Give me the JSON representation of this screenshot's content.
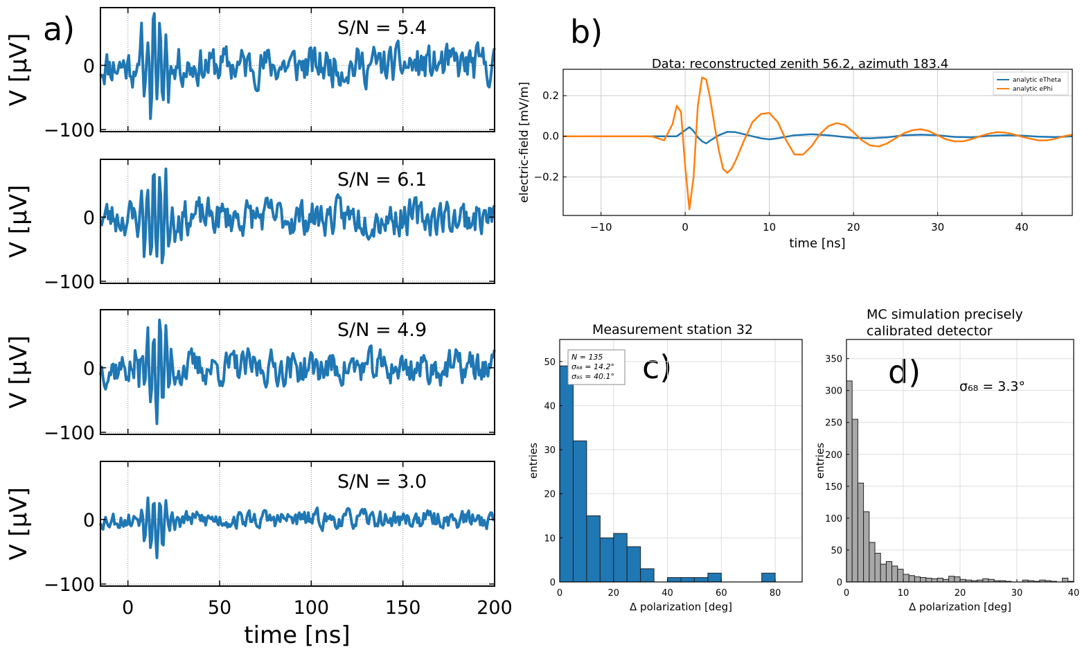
{
  "panel_labels": {
    "a": "a)",
    "b": "b)",
    "c": "c)",
    "d": "d)"
  },
  "colors": {
    "blue": "#1f77b4",
    "orange": "#ff7f0e",
    "gray_bar": "#a8a8a8",
    "grid": "#cccccc"
  },
  "chart_data": [
    {
      "id": "a",
      "type": "line",
      "xlabel": "time [ns]",
      "ylabel": "V [$\\mu$V]",
      "xlim": [
        -15,
        200
      ],
      "ylim": [
        -100,
        90
      ],
      "xticks": [
        0,
        50,
        100,
        150,
        200
      ],
      "yticks": [
        -100,
        0
      ],
      "ytick_labels": [
        "−100",
        "0"
      ],
      "grid": "vertical dotted",
      "panels": [
        {
          "annotation": "S/N = 5.4",
          "amplitude": 85,
          "pulse_amp": 1.9,
          "seed": 11
        },
        {
          "annotation": "S/N = 6.1",
          "amplitude": 80,
          "pulse_amp": 2.1,
          "seed": 23
        },
        {
          "annotation": "S/N = 4.9",
          "amplitude": 75,
          "pulse_amp": 1.9,
          "seed": 37
        },
        {
          "annotation": "S/N = 3.0",
          "amplitude": 40,
          "pulse_amp": 1.1,
          "seed": 53
        }
      ]
    },
    {
      "id": "b",
      "type": "line",
      "title": "Data: reconstructed zenith 56.2, azimuth 183.4",
      "xlabel": "time [ns]",
      "ylabel": "electric-field [mV/m]",
      "xlim": [
        -14.5,
        46
      ],
      "ylim": [
        -0.39,
        0.33
      ],
      "xticks": [
        -10,
        0,
        10,
        20,
        30,
        40
      ],
      "xtick_labels": [
        "−10",
        "0",
        "10",
        "20",
        "30",
        "40"
      ],
      "yticks": [
        -0.2,
        0.0,
        0.2
      ],
      "ytick_labels": [
        "−0.2",
        "0.0",
        "0.2"
      ],
      "grid": true,
      "legend_position": "top-right",
      "series": [
        {
          "name": "analytic eTheta",
          "x": [
            -14.5,
            -3,
            -1,
            0,
            0.5,
            1,
            1.5,
            2,
            2.5,
            3,
            4,
            5,
            6,
            7,
            8,
            9,
            10,
            11,
            13,
            15,
            17,
            20,
            22,
            24,
            26,
            28,
            30,
            32,
            34,
            36,
            38,
            40,
            42,
            44,
            46
          ],
          "y": [
            0,
            0,
            0,
            0.03,
            0.045,
            0.025,
            -0.005,
            -0.025,
            -0.035,
            -0.02,
            0.005,
            0.022,
            0.02,
            0.01,
            0,
            -0.01,
            -0.015,
            -0.01,
            0.005,
            0.01,
            0.005,
            -0.008,
            -0.01,
            -0.005,
            0.005,
            0.008,
            0.005,
            -0.003,
            -0.005,
            0.002,
            0.005,
            0.003,
            -0.002,
            -0.004,
            0
          ]
        },
        {
          "name": "analytic ePhi",
          "x": [
            -14.5,
            -4,
            -2.5,
            -1.5,
            -1,
            -0.5,
            0,
            0.5,
            1,
            1.5,
            2,
            2.5,
            3,
            3.5,
            4,
            4.5,
            5,
            5.5,
            6,
            7,
            8,
            9,
            10,
            11,
            12,
            13,
            14,
            15,
            16,
            17,
            18,
            19,
            20,
            21,
            22,
            23,
            24,
            25,
            26,
            27,
            28,
            29,
            30,
            31,
            32,
            33,
            34,
            35,
            36,
            37,
            38,
            39,
            40,
            41,
            42,
            43,
            44,
            45,
            46
          ],
          "y": [
            0,
            0,
            -0.02,
            0.06,
            0.15,
            0.12,
            -0.15,
            -0.36,
            -0.2,
            0.15,
            0.29,
            0.28,
            0.18,
            0.05,
            -0.07,
            -0.16,
            -0.18,
            -0.16,
            -0.12,
            -0.02,
            0.07,
            0.11,
            0.115,
            0.07,
            -0.02,
            -0.09,
            -0.09,
            -0.05,
            0.01,
            0.05,
            0.065,
            0.055,
            0.02,
            -0.02,
            -0.045,
            -0.05,
            -0.035,
            -0.01,
            0.015,
            0.03,
            0.035,
            0.025,
            0.005,
            -0.015,
            -0.025,
            -0.025,
            -0.015,
            0,
            0.012,
            0.02,
            0.018,
            0.01,
            -0.002,
            -0.012,
            -0.02,
            -0.02,
            -0.012,
            0,
            0.008
          ]
        }
      ]
    },
    {
      "id": "c",
      "type": "bar",
      "title": "Measurement station 32",
      "xlabel": "Δ polarization [deg]",
      "ylabel": "entries",
      "xlim": [
        0,
        90
      ],
      "ylim": [
        0,
        55
      ],
      "xticks": [
        0,
        20,
        40,
        60,
        80
      ],
      "yticks": [
        0,
        10,
        20,
        30,
        40,
        50
      ],
      "grid": true,
      "bin_width": 5,
      "bin_starts": [
        0,
        5,
        10,
        15,
        20,
        25,
        30,
        35,
        40,
        45,
        50,
        55,
        60,
        65,
        70,
        75
      ],
      "values": [
        49,
        32,
        15,
        10,
        11,
        8,
        3,
        0,
        1,
        1,
        1,
        2,
        0,
        0,
        0,
        2
      ],
      "stats_box": [
        "N = 135",
        "σ₆₈ = 14.2°",
        "σ₉₅ = 40.1°"
      ],
      "legend_position": "top-left"
    },
    {
      "id": "d",
      "type": "bar",
      "title": "MC simulation precisely calibrated detector",
      "title_lines": [
        "MC simulation precisely",
        "calibrated detector"
      ],
      "xlabel": "Δ polarization [deg]",
      "ylabel": "entries",
      "xlim": [
        0,
        40
      ],
      "ylim": [
        0,
        380
      ],
      "xticks": [
        0,
        10,
        20,
        30,
        40
      ],
      "yticks": [
        0,
        50,
        100,
        150,
        200,
        250,
        300,
        350
      ],
      "grid": true,
      "bin_width": 1,
      "bin_starts": [
        0,
        1,
        2,
        3,
        4,
        5,
        6,
        7,
        8,
        9,
        10,
        11,
        12,
        13,
        14,
        15,
        16,
        17,
        18,
        19,
        20,
        21,
        22,
        23,
        24,
        25,
        26,
        27,
        28,
        29,
        30,
        31,
        32,
        33,
        34,
        35,
        36,
        37,
        38,
        39
      ],
      "values": [
        315,
        255,
        155,
        110,
        62,
        45,
        28,
        32,
        25,
        20,
        12,
        10,
        8,
        7,
        6,
        5,
        6,
        4,
        9,
        8,
        4,
        3,
        2,
        3,
        5,
        4,
        2,
        2,
        1,
        0,
        0,
        3,
        2,
        1,
        3,
        2,
        1,
        0,
        6,
        1
      ],
      "annotation": "σ₆₈ = 3.3°"
    }
  ]
}
